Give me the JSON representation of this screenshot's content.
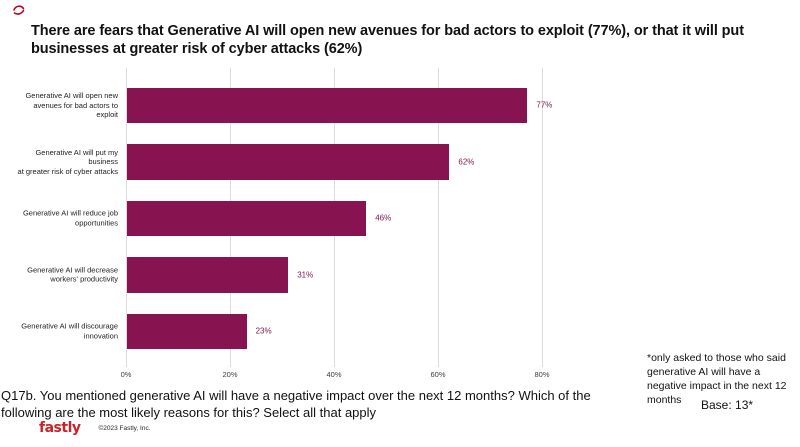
{
  "title": "There are fears that Generative AI will open new avenues for bad actors to exploit (77%), or that it will put businesses at greater risk of cyber attacks (62%)",
  "chart_data": {
    "type": "bar",
    "orientation": "horizontal",
    "categories": [
      "Generative AI will open new\navenues for bad actors to exploit",
      "Generative AI will put my business\nat greater risk of cyber attacks",
      "Generative AI will reduce job\nopportunities",
      "Generative AI will decrease\nworkers' productivity",
      "Generative AI will discourage\ninnovation"
    ],
    "values": [
      77,
      62,
      46,
      31,
      23
    ],
    "value_labels": [
      "77%",
      "62%",
      "46%",
      "31%",
      "23%"
    ],
    "x_ticks": [
      "0%",
      "20%",
      "40%",
      "60%",
      "80%"
    ],
    "x_tick_values": [
      0,
      20,
      40,
      60,
      80
    ],
    "xlim": [
      0,
      80
    ],
    "grid": true,
    "legend": false,
    "bar_color": "#871450",
    "value_label_color": "#871450",
    "gridline_color": "#dcdcdc"
  },
  "annotation": {
    "text": "*only asked to those who said generative AI will have a negative impact in the next 12 months",
    "base": "Base: 13*"
  },
  "question": "Q17b.  You mentioned generative AI will have a negative impact over the next 12 months? Which of the following are the most likely reasons for this? Select all that apply",
  "footer": {
    "logo": "fastly",
    "copyright": "©2023 Fastly, Inc."
  },
  "accent_red": "#c00020"
}
